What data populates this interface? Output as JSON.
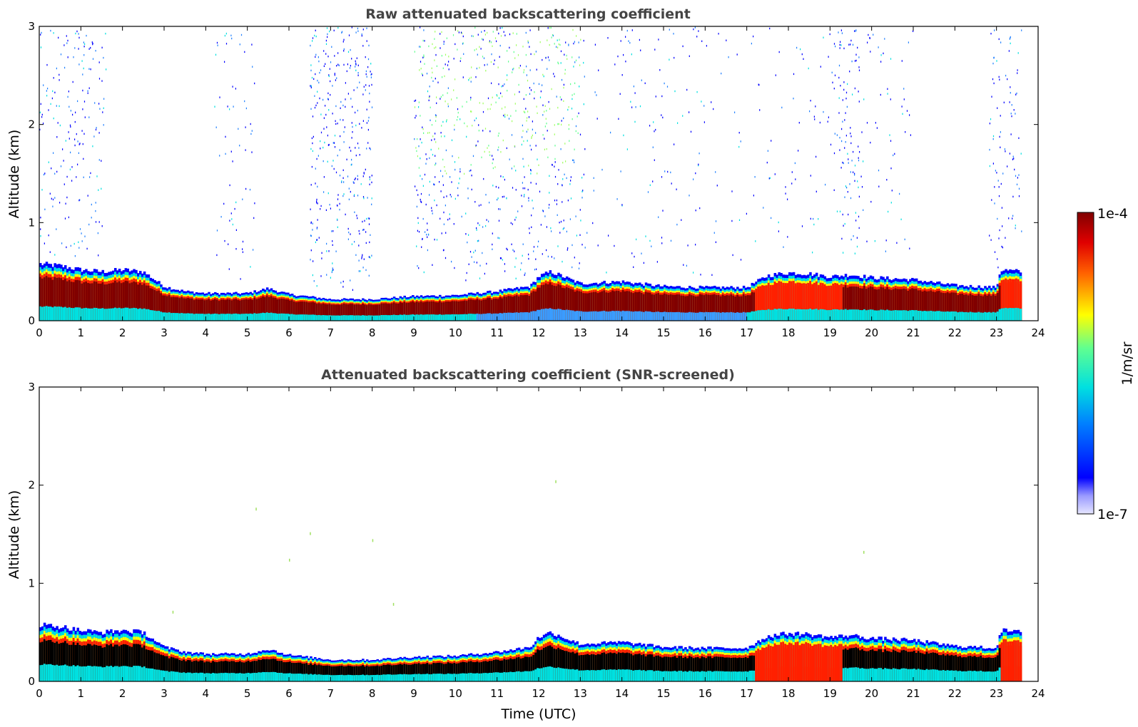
{
  "chart_data": [
    {
      "type": "heatmap",
      "title": "Raw attenuated backscattering coefficient",
      "xlabel": "",
      "ylabel": "Altitude (km)",
      "xlim": [
        0,
        24
      ],
      "ylim": [
        0,
        3
      ],
      "x_ticks": [
        "0",
        "1",
        "2",
        "3",
        "4",
        "5",
        "6",
        "7",
        "8",
        "9",
        "10",
        "11",
        "12",
        "13",
        "14",
        "15",
        "16",
        "17",
        "18",
        "19",
        "20",
        "21",
        "22",
        "23",
        "24"
      ],
      "y_ticks": [
        "0",
        "1",
        "2",
        "3"
      ],
      "layer_top_km": {
        "time": [
          0,
          0.5,
          1,
          1.5,
          2,
          2.5,
          3,
          3.5,
          4,
          5,
          5.5,
          6,
          7,
          8,
          9,
          10,
          11,
          11.8,
          12,
          12.3,
          13,
          14,
          15,
          16,
          17,
          17.5,
          18,
          18.5,
          19,
          19.5,
          20,
          21,
          22,
          23,
          23.1,
          23.6
        ],
        "value": [
          0.58,
          0.56,
          0.52,
          0.5,
          0.52,
          0.5,
          0.35,
          0.3,
          0.28,
          0.28,
          0.33,
          0.27,
          0.22,
          0.22,
          0.25,
          0.26,
          0.3,
          0.35,
          0.45,
          0.5,
          0.38,
          0.4,
          0.35,
          0.34,
          0.34,
          0.46,
          0.49,
          0.48,
          0.45,
          0.47,
          0.44,
          0.42,
          0.36,
          0.34,
          0.52,
          0.5
        ]
      },
      "aerosol_plumes": [
        {
          "t0": 0,
          "t1": 1.6,
          "max_km": 3.0,
          "density": "medium"
        },
        {
          "t0": 4.2,
          "t1": 5.2,
          "max_km": 3.0,
          "density": "streaks"
        },
        {
          "t0": 6.5,
          "t1": 8.0,
          "max_km": 3.0,
          "density": "high"
        },
        {
          "t0": 9.0,
          "t1": 13.0,
          "max_km": 3.0,
          "density": "high-green"
        },
        {
          "t0": 13.0,
          "t1": 21.0,
          "max_km": 3.0,
          "density": "low"
        },
        {
          "t0": 19.2,
          "t1": 19.7,
          "max_km": 3.0,
          "density": "column"
        },
        {
          "t0": 22.8,
          "t1": 23.6,
          "max_km": 3.0,
          "density": "medium"
        }
      ]
    },
    {
      "type": "heatmap",
      "title": "Attenuated backscattering coefficient (SNR-screened)",
      "xlabel": "Time (UTC)",
      "ylabel": "Altitude (km)",
      "xlim": [
        0,
        24
      ],
      "ylim": [
        0,
        3
      ],
      "x_ticks": [
        "0",
        "1",
        "2",
        "3",
        "4",
        "5",
        "6",
        "7",
        "8",
        "9",
        "10",
        "11",
        "12",
        "13",
        "14",
        "15",
        "16",
        "17",
        "18",
        "19",
        "20",
        "21",
        "22",
        "23",
        "24"
      ],
      "y_ticks": [
        "0",
        "1",
        "2",
        "3"
      ],
      "screened": true
    }
  ],
  "colorbar": {
    "label": "1/m/sr",
    "max_label": "1e-4",
    "min_label": "1e-7",
    "colormap": "jet",
    "scale": "log"
  },
  "colors": {
    "low": "#e8e8ff",
    "blue": "#0000ff",
    "cyan": "#00e0e0",
    "yellow": "#ffff00",
    "red": "#ff2000",
    "darkred": "#800000",
    "screened_core": "#000000"
  }
}
